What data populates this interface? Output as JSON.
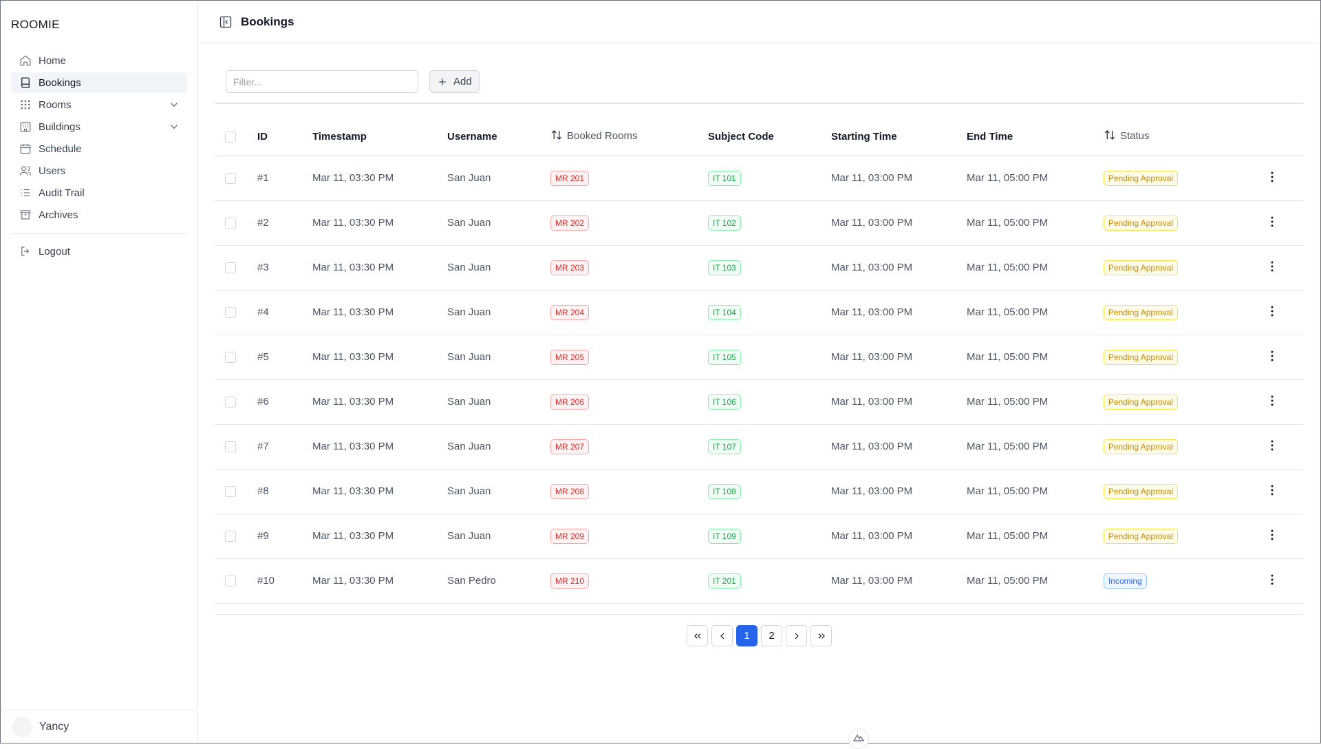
{
  "app": {
    "brand": "ROOMIE"
  },
  "sidebar": {
    "items": [
      {
        "label": "Home",
        "icon": "home-icon"
      },
      {
        "label": "Bookings",
        "icon": "book-icon",
        "active": true
      },
      {
        "label": "Rooms",
        "icon": "grid-icon",
        "expandable": true
      },
      {
        "label": "Buildings",
        "icon": "building-icon",
        "expandable": true
      },
      {
        "label": "Schedule",
        "icon": "calendar-icon"
      },
      {
        "label": "Users",
        "icon": "users-icon"
      },
      {
        "label": "Audit Trail",
        "icon": "list-icon"
      },
      {
        "label": "Archives",
        "icon": "archive-icon"
      }
    ],
    "logout": "Logout",
    "user": {
      "name": "Yancy"
    }
  },
  "header": {
    "title": "Bookings"
  },
  "toolbar": {
    "filter_placeholder": "Filter...",
    "add_label": "Add"
  },
  "table": {
    "columns": [
      "ID",
      "Timestamp",
      "Username",
      "Booked Rooms",
      "Subject Code",
      "Starting Time",
      "End Time",
      "Status"
    ],
    "rows": [
      {
        "id": "#1",
        "timestamp": "Mar 11, 03:30 PM",
        "username": "San Juan",
        "room": "MR 201",
        "subject": "IT 101",
        "start": "Mar 11, 03:00 PM",
        "end": "Mar 11, 05:00 PM",
        "status": "Pending Approval"
      },
      {
        "id": "#2",
        "timestamp": "Mar 11, 03:30 PM",
        "username": "San Juan",
        "room": "MR 202",
        "subject": "IT 102",
        "start": "Mar 11, 03:00 PM",
        "end": "Mar 11, 05:00 PM",
        "status": "Pending Approval"
      },
      {
        "id": "#3",
        "timestamp": "Mar 11, 03:30 PM",
        "username": "San Juan",
        "room": "MR 203",
        "subject": "IT 103",
        "start": "Mar 11, 03:00 PM",
        "end": "Mar 11, 05:00 PM",
        "status": "Pending Approval"
      },
      {
        "id": "#4",
        "timestamp": "Mar 11, 03:30 PM",
        "username": "San Juan",
        "room": "MR 204",
        "subject": "IT 104",
        "start": "Mar 11, 03:00 PM",
        "end": "Mar 11, 05:00 PM",
        "status": "Pending Approval"
      },
      {
        "id": "#5",
        "timestamp": "Mar 11, 03:30 PM",
        "username": "San Juan",
        "room": "MR 205",
        "subject": "IT 105",
        "start": "Mar 11, 03:00 PM",
        "end": "Mar 11, 05:00 PM",
        "status": "Pending Approval"
      },
      {
        "id": "#6",
        "timestamp": "Mar 11, 03:30 PM",
        "username": "San Juan",
        "room": "MR 206",
        "subject": "IT 106",
        "start": "Mar 11, 03:00 PM",
        "end": "Mar 11, 05:00 PM",
        "status": "Pending Approval"
      },
      {
        "id": "#7",
        "timestamp": "Mar 11, 03:30 PM",
        "username": "San Juan",
        "room": "MR 207",
        "subject": "IT 107",
        "start": "Mar 11, 03:00 PM",
        "end": "Mar 11, 05:00 PM",
        "status": "Pending Approval"
      },
      {
        "id": "#8",
        "timestamp": "Mar 11, 03:30 PM",
        "username": "San Juan",
        "room": "MR 208",
        "subject": "IT 108",
        "start": "Mar 11, 03:00 PM",
        "end": "Mar 11, 05:00 PM",
        "status": "Pending Approval"
      },
      {
        "id": "#9",
        "timestamp": "Mar 11, 03:30 PM",
        "username": "San Juan",
        "room": "MR 209",
        "subject": "IT 109",
        "start": "Mar 11, 03:00 PM",
        "end": "Mar 11, 05:00 PM",
        "status": "Pending Approval"
      },
      {
        "id": "#10",
        "timestamp": "Mar 11, 03:30 PM",
        "username": "San Pedro",
        "room": "MR 210",
        "subject": "IT 201",
        "start": "Mar 11, 03:00 PM",
        "end": "Mar 11, 05:00 PM",
        "status": "Incoming"
      }
    ]
  },
  "pagination": {
    "pages": [
      "1",
      "2"
    ],
    "current": "1"
  },
  "colors": {
    "accent": "#2563eb",
    "room_badge": "#dc2626",
    "subject_badge": "#16a34a",
    "pending": "#ca8a04",
    "incoming": "#2563eb"
  }
}
